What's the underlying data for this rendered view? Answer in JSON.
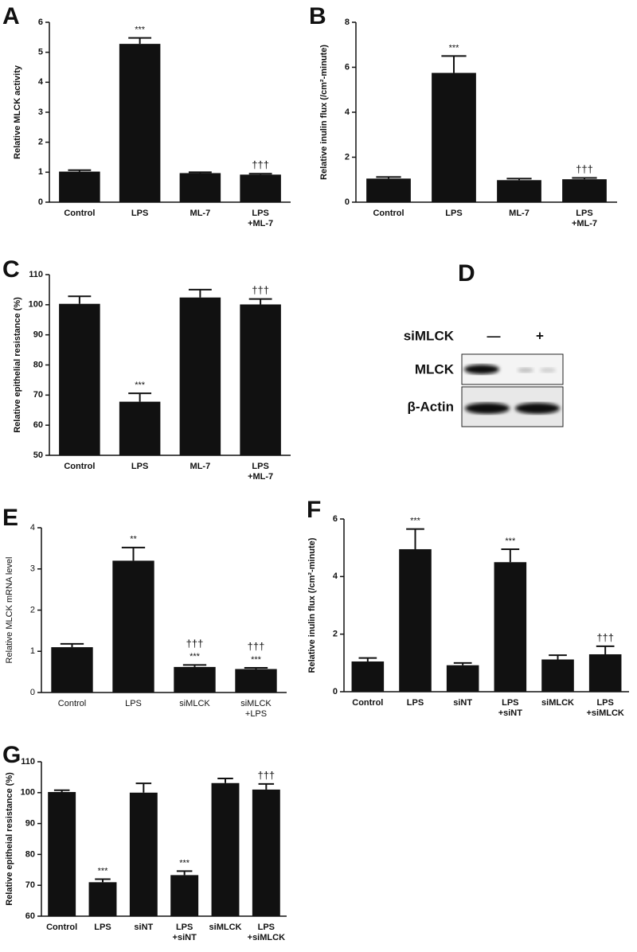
{
  "chart_data": [
    {
      "type": "bar",
      "panel": "A",
      "ylabel": "Relative MLCK activity",
      "categories": [
        "Control",
        "LPS",
        "ML-7",
        "LPS\n+ML-7"
      ],
      "values": [
        1.02,
        5.28,
        0.97,
        0.92
      ],
      "errors": [
        0.05,
        0.2,
        0.03,
        0.03
      ],
      "significance": [
        null,
        "***",
        null,
        null
      ],
      "significance_vs_lps": [
        null,
        null,
        null,
        "†††"
      ],
      "color": "#111111",
      "ylim": [
        0,
        6
      ],
      "yticks": [
        0,
        1,
        2,
        3,
        4,
        5,
        6
      ]
    },
    {
      "type": "bar",
      "panel": "B",
      "ylabel": "Relative inulin flux (/cm²-minute)",
      "categories": [
        "Control",
        "LPS",
        "ML-7",
        "LPS\n+ML-7"
      ],
      "values": [
        1.05,
        5.75,
        0.98,
        1.02
      ],
      "errors": [
        0.07,
        0.75,
        0.07,
        0.06
      ],
      "significance": [
        null,
        "***",
        null,
        null
      ],
      "significance_vs_lps": [
        null,
        null,
        null,
        "†††"
      ],
      "color": "#111111",
      "ylim": [
        0,
        8
      ],
      "yticks": [
        0,
        2,
        4,
        6,
        8
      ]
    },
    {
      "type": "bar",
      "panel": "C",
      "ylabel": "Relative epithelial resistance (%)",
      "categories": [
        "Control",
        "LPS",
        "ML-7",
        "LPS\n+ML-7"
      ],
      "values": [
        100.3,
        67.8,
        102.4,
        100.1
      ],
      "errors": [
        2.5,
        2.8,
        2.6,
        1.8
      ],
      "significance": [
        null,
        "***",
        null,
        null
      ],
      "significance_vs_lps": [
        null,
        null,
        null,
        "†††"
      ],
      "color": "#111111",
      "ylim": [
        50,
        110
      ],
      "yticks": [
        50,
        60,
        70,
        80,
        90,
        100,
        110
      ]
    },
    {
      "type": "bar",
      "panel": "E",
      "ylabel": "Relative MLCK mRNA level",
      "categories": [
        "Control",
        "LPS",
        "siMLCK",
        "siMLCK\n+LPS"
      ],
      "values": [
        1.1,
        3.2,
        0.62,
        0.57
      ],
      "errors": [
        0.08,
        0.32,
        0.05,
        0.03
      ],
      "significance": [
        null,
        "**",
        "***",
        "***"
      ],
      "significance_vs_lps": [
        null,
        null,
        "†††",
        "†††"
      ],
      "color": "#111111",
      "ylim": [
        0,
        4
      ],
      "yticks": [
        0,
        1,
        2,
        3,
        4
      ]
    },
    {
      "type": "bar",
      "panel": "F",
      "ylabel": "Relative inulin flux (/cm²-minute)",
      "categories": [
        "Control",
        "LPS",
        "siNT",
        "LPS\n+siNT",
        "siMLCK",
        "LPS\n+siMLCK"
      ],
      "values": [
        1.05,
        4.95,
        0.92,
        4.5,
        1.12,
        1.3
      ],
      "errors": [
        0.12,
        0.7,
        0.08,
        0.45,
        0.15,
        0.28
      ],
      "significance": [
        null,
        "***",
        null,
        "***",
        null,
        null
      ],
      "significance_vs_lps": [
        null,
        null,
        null,
        null,
        null,
        "†††"
      ],
      "color": "#111111",
      "ylim": [
        0,
        6
      ],
      "yticks": [
        0,
        2,
        4,
        6
      ]
    },
    {
      "type": "bar",
      "panel": "G",
      "ylabel": "Relative epitheial resistance (%)",
      "categories": [
        "Control",
        "LPS",
        "siNT",
        "LPS\n+siNT",
        "siMLCK",
        "LPS\n+siMLCK"
      ],
      "values": [
        100.2,
        71,
        100,
        73.3,
        103.1,
        101
      ],
      "errors": [
        0.6,
        1,
        3,
        1.3,
        1.5,
        1.8
      ],
      "significance": [
        null,
        "***",
        null,
        "***",
        null,
        null
      ],
      "significance_vs_lps": [
        null,
        null,
        null,
        null,
        null,
        "†††"
      ],
      "color": "#111111",
      "ylim": [
        60,
        110
      ],
      "yticks": [
        60,
        70,
        80,
        90,
        100,
        110
      ]
    }
  ],
  "blot": {
    "panel": "D",
    "treatment": "siMLCK",
    "lanes": [
      "—",
      "+"
    ],
    "rows": [
      "MLCK",
      "β-Actin"
    ]
  }
}
